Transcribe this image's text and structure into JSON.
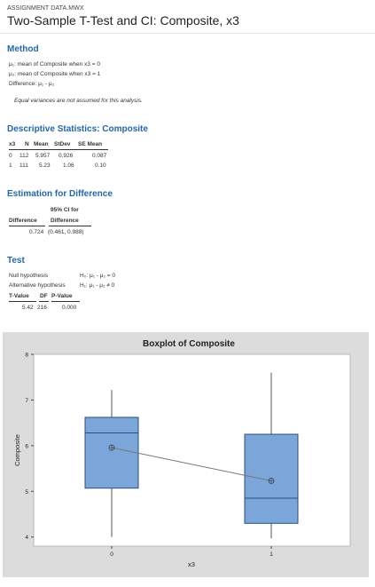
{
  "file_name": "ASSIGNMENT DATA.MWX",
  "title": "Two-Sample T-Test and CI: Composite, x3",
  "method": {
    "heading": "Method",
    "mu1": "μ₁: mean of Composite when x3 = 0",
    "mu2": "μ₂: mean of Composite when x3 = 1",
    "difference": "Difference: μ₁ - μ₂",
    "note": "Equal variances are not assumed for this analysis."
  },
  "descriptive": {
    "heading": "Descriptive Statistics: Composite",
    "columns": [
      "x3",
      "N",
      "Mean",
      "StDev",
      "SE Mean"
    ],
    "rows": [
      [
        "0",
        "112",
        "5.957",
        "0.926",
        "0.087"
      ],
      [
        "1",
        "111",
        "5.23",
        "1.06",
        "0.10"
      ]
    ]
  },
  "estimation": {
    "heading": "Estimation for Difference",
    "col1": "Difference",
    "col2_line1": "95% CI for",
    "col2_line2": "Difference",
    "difference": "0.724",
    "ci": "(0.461, 0.988)"
  },
  "test": {
    "heading": "Test",
    "null_label": "Null hypothesis",
    "null_value": "H₀: μ₁ - μ₂ = 0",
    "alt_label": "Alternative hypothesis",
    "alt_value": "H₁: μ₁ - μ₂ ≠ 0",
    "columns": [
      "T-Value",
      "DF",
      "P-Value"
    ],
    "values": [
      "5.42",
      "216",
      "0.000"
    ]
  },
  "chart_data": {
    "type": "boxplot",
    "title": "Boxplot of Composite",
    "xlabel": "x3",
    "ylabel": "Composite",
    "categories": [
      "0",
      "1"
    ],
    "ylim": [
      3.8,
      8.0
    ],
    "yticks": [
      "4",
      "5",
      "6",
      "7",
      "8"
    ],
    "boxes": [
      {
        "category": "0",
        "whisker_low": 4.0,
        "q1": 5.07,
        "median": 6.28,
        "q3": 6.62,
        "whisker_high": 7.22,
        "mean": 5.957
      },
      {
        "category": "1",
        "whisker_low": 3.97,
        "q1": 4.3,
        "median": 4.85,
        "q3": 6.25,
        "whisker_high": 7.6,
        "mean": 5.23
      }
    ],
    "mean_connect_line": true,
    "colors": {
      "box_fill": "#7aa6da",
      "box_stroke": "#2b4e7e",
      "background": "#dcdcdc",
      "plot_area": "#ffffff",
      "line": "#777777"
    }
  }
}
